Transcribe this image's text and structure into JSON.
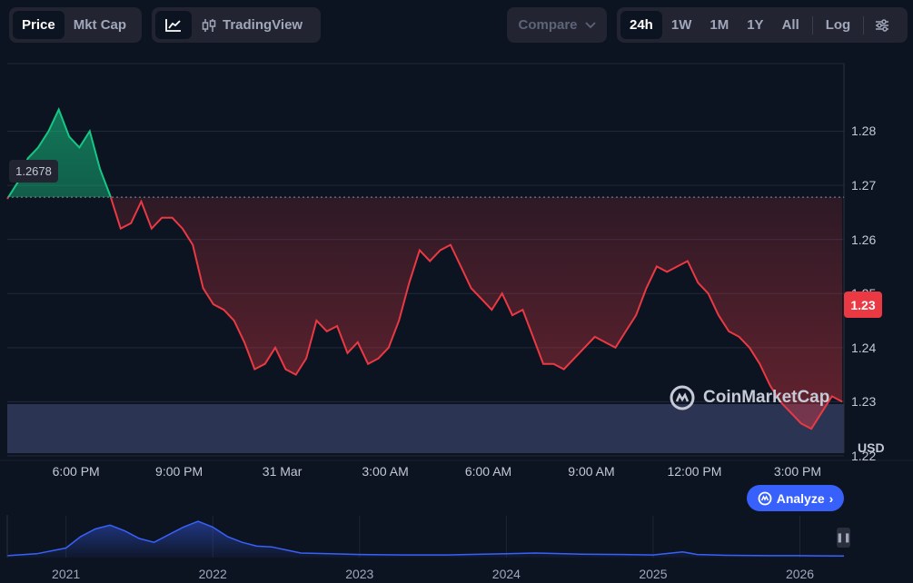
{
  "toolbar": {
    "view_tabs": [
      {
        "label": "Price",
        "active": true
      },
      {
        "label": "Mkt Cap",
        "active": false
      }
    ],
    "chart_type": {
      "line_icon": "line-chart-icon",
      "tradingview_icon": "candlestick-icon",
      "tradingview_label": "TradingView"
    },
    "compare_label": "Compare",
    "ranges": [
      {
        "label": "24h",
        "active": true
      },
      {
        "label": "1W",
        "active": false
      },
      {
        "label": "1M",
        "active": false
      },
      {
        "label": "1Y",
        "active": false
      },
      {
        "label": "All",
        "active": false
      }
    ],
    "log_label": "Log",
    "settings_icon": "settings-sliders-icon"
  },
  "chart": {
    "open_price_label": "1.2678",
    "current_price_label": "1.23",
    "currency_label": "USD",
    "watermark": "CoinMarketCap",
    "analyze_label": "Analyze",
    "colors": {
      "up": "#16c784",
      "down": "#ea3943",
      "volume": "#2b3553",
      "navigator": "#3861fb",
      "accent": "#3861fb"
    }
  },
  "chart_data": {
    "type": "area",
    "y_ticks": [
      "1.28",
      "1.27",
      "1.26",
      "1.25",
      "1.24",
      "1.23",
      "1.22"
    ],
    "y_tick_values": [
      1.28,
      1.27,
      1.26,
      1.25,
      1.24,
      1.23,
      1.22
    ],
    "x_ticks": [
      "6:00 PM",
      "9:00 PM",
      "31 Mar",
      "3:00 AM",
      "6:00 AM",
      "9:00 AM",
      "12:00 PM",
      "3:00 PM"
    ],
    "x_tick_hours": [
      2,
      5,
      8,
      11,
      14,
      17,
      20,
      23
    ],
    "ylim": [
      1.2205,
      1.2925
    ],
    "xlim_hours": [
      0,
      24.35
    ],
    "baseline": 1.2678,
    "series": [
      {
        "x": [
          0,
          0.3,
          0.6,
          0.9,
          1.2,
          1.5,
          1.8,
          2.1,
          2.4,
          2.7,
          3.0,
          3.3,
          3.6,
          3.9,
          4.2,
          4.5,
          4.8,
          5.1,
          5.4,
          5.7,
          6.0,
          6.3,
          6.6,
          6.9,
          7.2,
          7.5,
          7.8,
          8.1,
          8.4,
          8.7,
          9.0,
          9.3,
          9.6,
          9.9,
          10.2,
          10.5,
          10.8,
          11.1,
          11.4,
          11.7,
          12.0,
          12.3,
          12.6,
          12.9,
          13.2,
          13.5,
          13.8,
          14.1,
          14.4,
          14.7,
          15.0,
          15.3,
          15.6,
          15.9,
          16.2,
          16.5,
          16.8,
          17.1,
          17.4,
          17.7,
          18.0,
          18.3,
          18.6,
          18.9,
          19.2,
          19.5,
          19.8,
          20.1,
          20.4,
          20.7,
          21.0,
          21.3,
          21.6,
          21.9,
          22.2,
          22.5,
          22.8,
          23.1,
          23.4,
          23.7,
          24.0,
          24.3
        ],
        "y": [
          1.2675,
          1.2705,
          1.275,
          1.277,
          1.28,
          1.284,
          1.279,
          1.277,
          1.28,
          1.273,
          1.268,
          1.262,
          1.263,
          1.267,
          1.262,
          1.264,
          1.264,
          1.262,
          1.259,
          1.251,
          1.248,
          1.247,
          1.245,
          1.241,
          1.236,
          1.237,
          1.24,
          1.236,
          1.235,
          1.238,
          1.245,
          1.243,
          1.244,
          1.239,
          1.241,
          1.237,
          1.238,
          1.24,
          1.245,
          1.252,
          1.258,
          1.256,
          1.258,
          1.259,
          1.255,
          1.251,
          1.249,
          1.247,
          1.25,
          1.246,
          1.247,
          1.242,
          1.237,
          1.237,
          1.236,
          1.238,
          1.24,
          1.242,
          1.241,
          1.24,
          1.243,
          1.246,
          1.251,
          1.255,
          1.254,
          1.255,
          1.256,
          1.252,
          1.25,
          1.246,
          1.243,
          1.242,
          1.24,
          1.237,
          1.233,
          1.23,
          1.228,
          1.226,
          1.225,
          1.228,
          1.231,
          1.23
        ]
      }
    ],
    "navigator": {
      "x_ticks": [
        "2021",
        "2022",
        "2023",
        "2024",
        "2025",
        "2026"
      ],
      "x_tick_years": [
        2021,
        2022,
        2023,
        2024,
        2025,
        2026
      ],
      "x_range_years": [
        2020.6,
        2026.3
      ],
      "x": [
        2020.6,
        2020.8,
        2021.0,
        2021.1,
        2021.2,
        2021.3,
        2021.4,
        2021.5,
        2021.6,
        2021.7,
        2021.8,
        2021.9,
        2022.0,
        2022.1,
        2022.2,
        2022.3,
        2022.4,
        2022.5,
        2022.6,
        2022.8,
        2023.0,
        2023.3,
        2023.6,
        2024.0,
        2024.2,
        2024.5,
        2024.8,
        2025.0,
        2025.2,
        2025.3,
        2025.5,
        2025.8,
        2026.0,
        2026.3
      ],
      "y": [
        0.05,
        0.1,
        0.25,
        0.55,
        0.75,
        0.85,
        0.7,
        0.5,
        0.4,
        0.6,
        0.8,
        0.95,
        0.8,
        0.55,
        0.4,
        0.3,
        0.28,
        0.2,
        0.12,
        0.1,
        0.08,
        0.07,
        0.07,
        0.1,
        0.12,
        0.09,
        0.08,
        0.07,
        0.15,
        0.08,
        0.06,
        0.05,
        0.05,
        0.04
      ]
    }
  }
}
